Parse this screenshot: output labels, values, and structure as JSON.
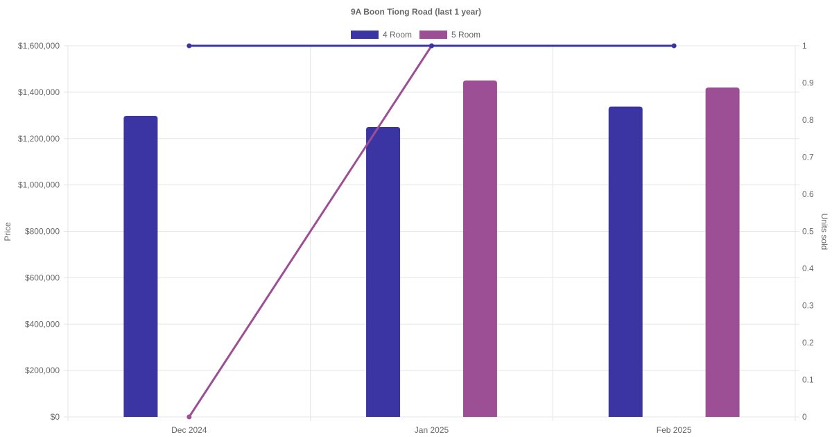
{
  "chart_data": {
    "type": "bar",
    "title": "9A Boon Tiong Road (last 1 year)",
    "categories": [
      "Dec 2024",
      "Jan 2025",
      "Feb 2025"
    ],
    "ylabel": "Price",
    "y2label": "Units sold",
    "ylim": [
      0,
      1600000
    ],
    "y2lim": [
      0,
      1
    ],
    "y_ticks": [
      "$0",
      "$200,000",
      "$400,000",
      "$600,000",
      "$800,000",
      "$1,000,000",
      "$1,200,000",
      "$1,400,000",
      "$1,600,000"
    ],
    "y2_ticks": [
      "0",
      "0.1",
      "0.2",
      "0.3",
      "0.4",
      "0.5",
      "0.6",
      "0.7",
      "0.8",
      "0.9",
      "1"
    ],
    "grid": true,
    "legend": "top-center",
    "series": [
      {
        "name": "4 Room",
        "color": "#3a35a3",
        "values": [
          1298000,
          1250000,
          1338000
        ],
        "units": [
          1,
          1,
          1
        ]
      },
      {
        "name": "5 Room",
        "color": "#9d4f96",
        "values": [
          null,
          1450000,
          1420000
        ],
        "units": [
          0,
          1,
          null
        ]
      }
    ]
  }
}
